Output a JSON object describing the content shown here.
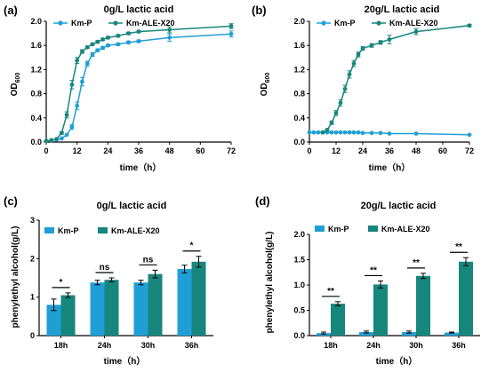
{
  "colors": {
    "km_p": "#1f9fd6",
    "km_ale": "#17867d"
  },
  "chart_data": [
    {
      "id": "a",
      "panel_label": "(a)",
      "type": "line",
      "title": "0g/L lactic acid",
      "xlabel": "time（h）",
      "ylabel": "OD600",
      "ylabel_main": "OD",
      "ylabel_sub": "600",
      "xlim": [
        0,
        72
      ],
      "ylim": [
        0,
        2.0
      ],
      "xticks": [
        0,
        12,
        24,
        36,
        48,
        60,
        72
      ],
      "xtick_labels": [
        "0",
        "12",
        "24",
        "36",
        "48",
        "60",
        "72"
      ],
      "yticks": [
        0,
        0.4,
        0.8,
        1.2,
        1.6,
        2.0
      ],
      "ytick_labels": [
        "0.0",
        "0.4",
        "0.8",
        "1.2",
        "1.6",
        "2.0"
      ],
      "legend_position": "top-left",
      "series": [
        {
          "name": "Km-P",
          "marker": "circle",
          "points": [
            [
              0,
              0.02
            ],
            [
              2,
              0.03
            ],
            [
              4,
              0.04
            ],
            [
              6,
              0.06
            ],
            [
              8,
              0.12
            ],
            [
              10,
              0.25
            ],
            [
              12,
              0.6
            ],
            [
              14,
              1.0
            ],
            [
              16,
              1.3
            ],
            [
              18,
              1.45
            ],
            [
              20,
              1.52
            ],
            [
              22,
              1.56
            ],
            [
              24,
              1.6
            ],
            [
              28,
              1.62
            ],
            [
              32,
              1.65
            ],
            [
              36,
              1.67
            ],
            [
              48,
              1.73
            ],
            [
              72,
              1.79
            ]
          ],
          "errors": [
            0,
            0,
            0,
            0,
            0,
            0.04,
            0.06,
            0.07,
            0.04,
            0.03,
            0.02,
            0.02,
            0.02,
            0.02,
            0.02,
            0.02,
            0.06,
            0.05
          ]
        },
        {
          "name": "Km-ALE-X20",
          "marker": "circle",
          "points": [
            [
              0,
              0.02
            ],
            [
              2,
              0.03
            ],
            [
              4,
              0.05
            ],
            [
              6,
              0.15
            ],
            [
              8,
              0.45
            ],
            [
              10,
              0.95
            ],
            [
              12,
              1.35
            ],
            [
              14,
              1.5
            ],
            [
              16,
              1.57
            ],
            [
              18,
              1.62
            ],
            [
              20,
              1.66
            ],
            [
              22,
              1.7
            ],
            [
              24,
              1.73
            ],
            [
              28,
              1.76
            ],
            [
              32,
              1.8
            ],
            [
              36,
              1.83
            ],
            [
              48,
              1.86
            ],
            [
              72,
              1.92
            ]
          ],
          "errors": [
            0,
            0,
            0,
            0.02,
            0.05,
            0.07,
            0.05,
            0.03,
            0.02,
            0.02,
            0.02,
            0.02,
            0.02,
            0.02,
            0.02,
            0.02,
            0.05,
            0.04
          ]
        }
      ]
    },
    {
      "id": "b",
      "panel_label": "(b)",
      "type": "line",
      "title": "20g/L lactic acid",
      "xlabel": "time（h）",
      "ylabel": "OD600",
      "ylabel_main": "OD",
      "ylabel_sub": "600",
      "xlim": [
        0,
        72
      ],
      "ylim": [
        0,
        2.0
      ],
      "xticks": [
        0,
        12,
        24,
        36,
        48,
        60,
        72
      ],
      "xtick_labels": [
        "0",
        "12",
        "24",
        "36",
        "48",
        "60",
        "72"
      ],
      "yticks": [
        0,
        0.4,
        0.8,
        1.2,
        1.6,
        2.0
      ],
      "ytick_labels": [
        "0.0",
        "0.4",
        "0.8",
        "1.2",
        "1.6",
        "2.0"
      ],
      "legend_position": "top-left",
      "series": [
        {
          "name": "Km-P",
          "marker": "circle",
          "points": [
            [
              0,
              0.16
            ],
            [
              2,
              0.16
            ],
            [
              4,
              0.16
            ],
            [
              6,
              0.16
            ],
            [
              8,
              0.16
            ],
            [
              10,
              0.16
            ],
            [
              12,
              0.16
            ],
            [
              14,
              0.16
            ],
            [
              16,
              0.16
            ],
            [
              18,
              0.16
            ],
            [
              20,
              0.16
            ],
            [
              22,
              0.16
            ],
            [
              24,
              0.15
            ],
            [
              28,
              0.15
            ],
            [
              32,
              0.15
            ],
            [
              36,
              0.14
            ],
            [
              48,
              0.14
            ],
            [
              72,
              0.12
            ]
          ],
          "errors": [
            0,
            0,
            0,
            0,
            0,
            0,
            0,
            0,
            0,
            0,
            0,
            0,
            0,
            0,
            0,
            0,
            0,
            0
          ]
        },
        {
          "name": "Km-ALE-X20",
          "marker": "circle",
          "points": [
            [
              6,
              0.16
            ],
            [
              8,
              0.2
            ],
            [
              10,
              0.32
            ],
            [
              12,
              0.48
            ],
            [
              14,
              0.65
            ],
            [
              16,
              0.88
            ],
            [
              18,
              1.12
            ],
            [
              20,
              1.3
            ],
            [
              22,
              1.45
            ],
            [
              24,
              1.55
            ],
            [
              28,
              1.6
            ],
            [
              32,
              1.65
            ],
            [
              36,
              1.7
            ],
            [
              48,
              1.83
            ],
            [
              72,
              1.93
            ]
          ],
          "errors": [
            0,
            0.02,
            0.03,
            0.04,
            0.05,
            0.06,
            0.06,
            0.05,
            0.04,
            0.03,
            0.03,
            0.03,
            0.07,
            0.05,
            0.02
          ]
        }
      ]
    },
    {
      "id": "c",
      "panel_label": "(c)",
      "type": "bar",
      "title": "0g/L lactic acid",
      "xlabel": "time（h）",
      "ylabel": "phenylethyl alcohol(g/L)",
      "categories": [
        "18h",
        "24h",
        "30h",
        "36h"
      ],
      "ylim": [
        0,
        3
      ],
      "yticks": [
        0,
        1,
        2,
        3
      ],
      "ytick_labels": [
        "0",
        "1",
        "2",
        "3"
      ],
      "legend_position": "top-left",
      "series": [
        {
          "name": "Km-P",
          "values": [
            0.8,
            1.38,
            1.38,
            1.73
          ],
          "errors": [
            0.15,
            0.06,
            0.06,
            0.1
          ]
        },
        {
          "name": "Km-ALE-X20",
          "values": [
            1.05,
            1.45,
            1.6,
            1.92
          ],
          "errors": [
            0.06,
            0.05,
            0.1,
            0.14
          ]
        }
      ],
      "significance": [
        "*",
        "ns",
        "ns",
        "*"
      ]
    },
    {
      "id": "d",
      "panel_label": "(d)",
      "type": "bar",
      "title": "20g/L lactic acid",
      "xlabel": "time（h）",
      "ylabel": "phenylethyl alcohol(g/L)",
      "categories": [
        "18h",
        "24h",
        "30h",
        "36h"
      ],
      "ylim": [
        0,
        2.0
      ],
      "yticks": [
        0,
        0.5,
        1.0,
        1.5,
        2.0
      ],
      "ytick_labels": [
        "0.0",
        "0.5",
        "1.0",
        "1.5",
        "2.0"
      ],
      "legend_position": "top-left",
      "series": [
        {
          "name": "Km-P",
          "values": [
            0.05,
            0.07,
            0.07,
            0.06
          ],
          "errors": [
            0.02,
            0.02,
            0.02,
            0.01
          ]
        },
        {
          "name": "Km-ALE-X20",
          "values": [
            0.63,
            1.01,
            1.18,
            1.46
          ],
          "errors": [
            0.04,
            0.07,
            0.05,
            0.08
          ]
        }
      ],
      "significance": [
        "**",
        "**",
        "**",
        "**"
      ]
    }
  ]
}
